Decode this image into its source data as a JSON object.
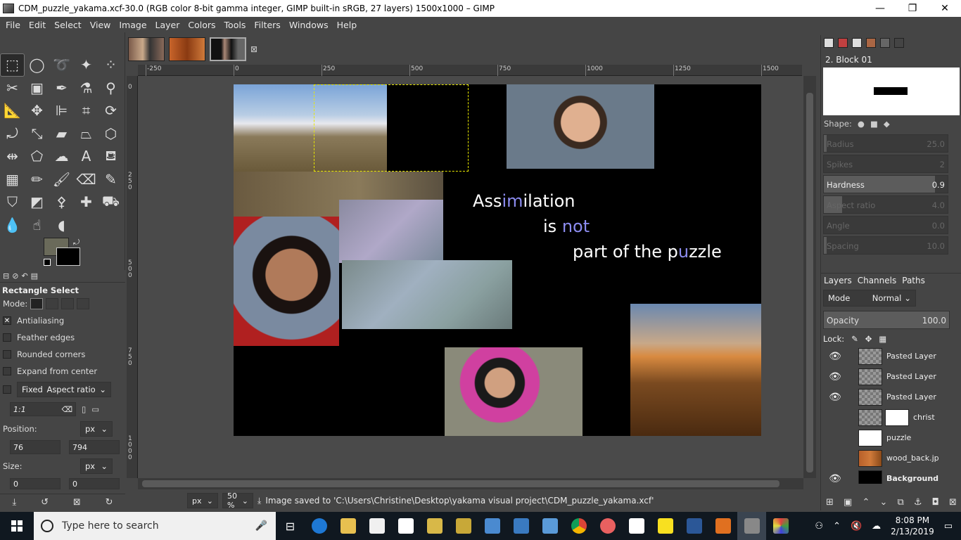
{
  "window": {
    "title": "CDM_puzzle_yakama.xcf-30.0 (RGB color 8-bit gamma integer, GIMP built-in sRGB, 27 layers) 1500x1000 – GIMP",
    "minimize": "—",
    "maximize": "❐",
    "close": "✕"
  },
  "menu": [
    "File",
    "Edit",
    "Select",
    "View",
    "Image",
    "Layer",
    "Colors",
    "Tools",
    "Filters",
    "Windows",
    "Help"
  ],
  "rulers": {
    "h": [
      "-250",
      "0",
      "250",
      "500",
      "750",
      "1000",
      "1250",
      "1500"
    ],
    "v": [
      "0",
      "250",
      "500",
      "750",
      "1000"
    ]
  },
  "canvas": {
    "poem": {
      "line1_a": "Ass",
      "line1_b": "im",
      "line1_c": "ilation",
      "line2_a": "is ",
      "line2_b": "not",
      "line3_a": "part of the p",
      "line3_b": "u",
      "line3_c": "zzle"
    }
  },
  "tool_options": {
    "title": "Rectangle Select",
    "mode_label": "Mode:",
    "antialiasing": "Antialiasing",
    "feather": "Feather edges",
    "rounded": "Rounded corners",
    "expand": "Expand from center",
    "fixed": "Fixed",
    "aspect": "Aspect ratio",
    "ratio_value": "1:1",
    "position_label": "Position:",
    "position_unit": "px",
    "pos_x": "76",
    "pos_y": "794",
    "size_label": "Size:",
    "size_unit": "px",
    "size_w": "0",
    "size_h": "0"
  },
  "status": {
    "unit": "px",
    "zoom": "50 %",
    "message": "Image saved to 'C:\\Users\\Christine\\Desktop\\yakama visual project\\CDM_puzzle_yakama.xcf'"
  },
  "brushes": {
    "name": "2. Block 01",
    "shape_label": "Shape:",
    "sliders": [
      {
        "label": "Radius",
        "value": "25.0",
        "fill": 0.02,
        "dim": true
      },
      {
        "label": "Spikes",
        "value": "2",
        "fill": 0.0,
        "dim": true
      },
      {
        "label": "Hardness",
        "value": "0.9",
        "fill": 0.9,
        "dim": false
      },
      {
        "label": "Aspect ratio",
        "value": "4.0",
        "fill": 0.15,
        "dim": true
      },
      {
        "label": "Angle",
        "value": "0.0",
        "fill": 0.0,
        "dim": true
      },
      {
        "label": "Spacing",
        "value": "10.0",
        "fill": 0.02,
        "dim": true
      }
    ]
  },
  "layers_panel": {
    "tabs": [
      "Layers",
      "Channels",
      "Paths"
    ],
    "mode_label": "Mode",
    "mode_value": "Normal",
    "opacity_label": "Opacity",
    "opacity_value": "100.0",
    "lock_label": "Lock:",
    "layers": [
      {
        "name": "Pasted Layer",
        "visible": true,
        "mask": false,
        "thumb": "checker"
      },
      {
        "name": "Pasted Layer",
        "visible": true,
        "mask": false,
        "thumb": "checker"
      },
      {
        "name": "Pasted Layer",
        "visible": true,
        "mask": false,
        "thumb": "checker"
      },
      {
        "name": "christ",
        "visible": false,
        "mask": true,
        "thumb": "checker"
      },
      {
        "name": "puzzle",
        "visible": false,
        "mask": false,
        "thumb": "white"
      },
      {
        "name": "wood_back.jp",
        "visible": false,
        "mask": false,
        "thumb": "wood"
      },
      {
        "name": "Background",
        "visible": true,
        "mask": false,
        "thumb": "black"
      }
    ]
  },
  "taskbar": {
    "search_placeholder": "Type here to search",
    "time": "8:08 PM",
    "date": "2/13/2019"
  },
  "colors": {
    "fg": "#6a6a5a",
    "bg": "#000000",
    "selection": "#e8e800",
    "poem_highlight": "#8c8cf0"
  }
}
